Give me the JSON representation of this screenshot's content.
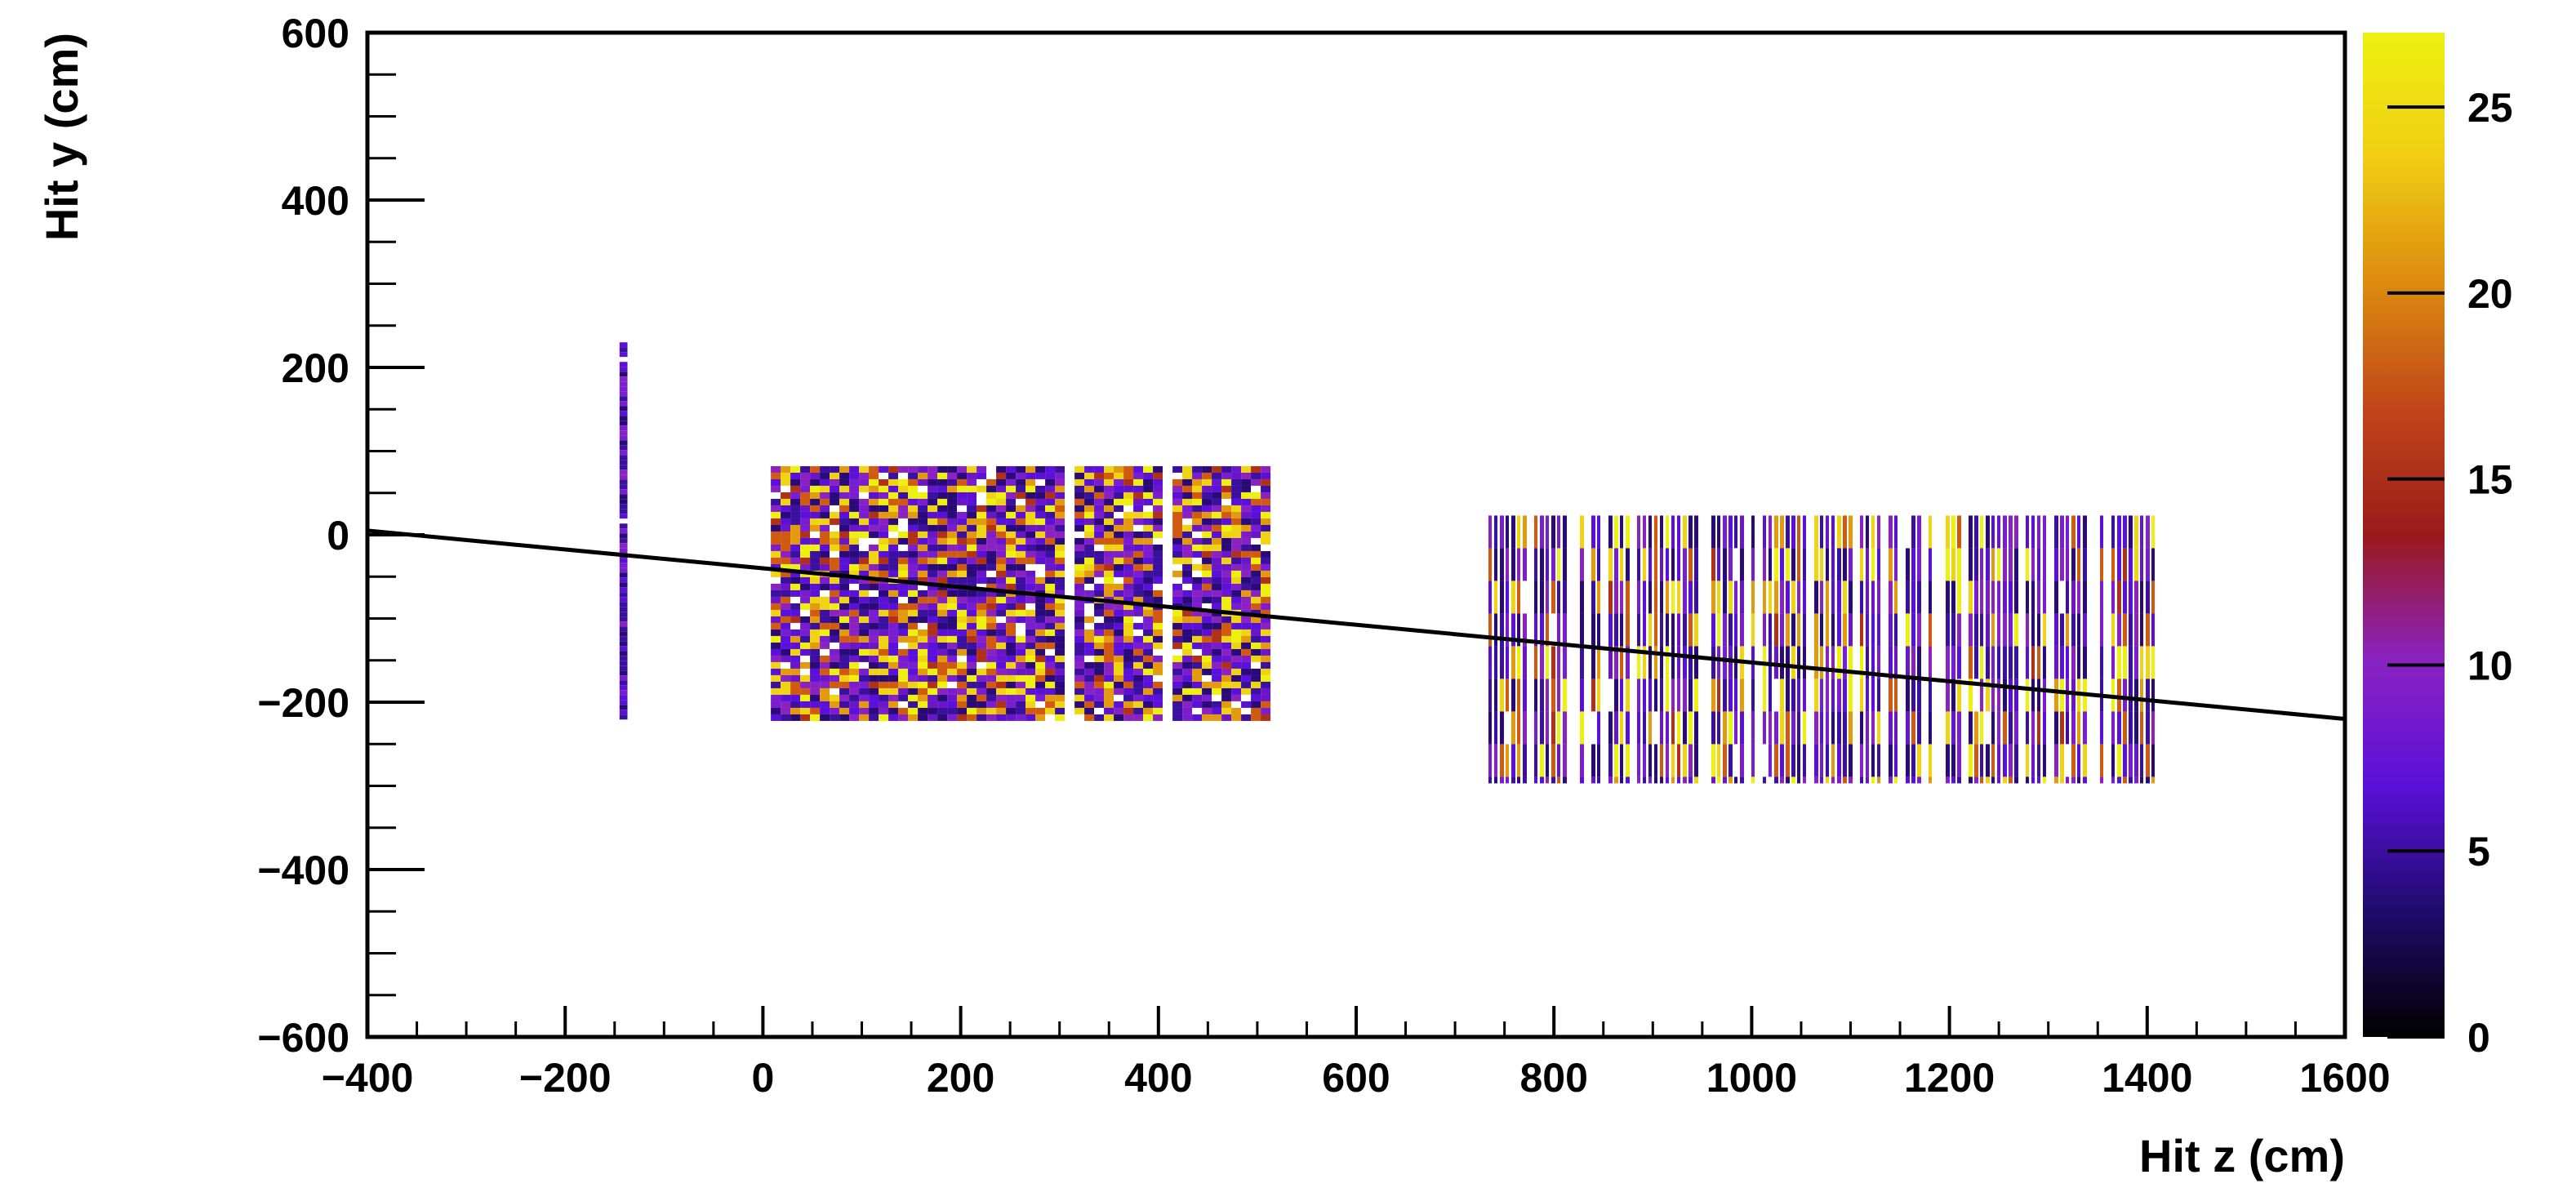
{
  "chart_data": {
    "type": "heatmap",
    "title": "",
    "xlabel": "Hit z (cm)",
    "ylabel": "Hit y (cm)",
    "xlim": [
      -400,
      1600
    ],
    "ylim": [
      -600,
      600
    ],
    "x_ticks": [
      -400,
      -200,
      0,
      200,
      400,
      600,
      800,
      1000,
      1200,
      1400,
      1600
    ],
    "y_ticks": [
      -600,
      -400,
      -200,
      0,
      200,
      400,
      600
    ],
    "x_tick_labels": [
      "−400",
      "−200",
      "0",
      "200",
      "400",
      "600",
      "800",
      "1000",
      "1200",
      "1400",
      "1600"
    ],
    "y_tick_labels": [
      "−600",
      "−400",
      "−200",
      "0",
      "200",
      "400",
      "600"
    ],
    "colorbar": {
      "range": [
        0,
        27
      ],
      "ticks": [
        0,
        5,
        10,
        15,
        20,
        25
      ],
      "tick_labels": [
        "0",
        "5",
        "10",
        "15",
        "20",
        "25"
      ],
      "colormap": [
        "#000000",
        "#1f0b6b",
        "#5a10d8",
        "#8a22c2",
        "#9a1a1a",
        "#c0461a",
        "#dc8a10",
        "#f0ce14",
        "#eef00f"
      ]
    },
    "hit_regions": [
      {
        "z_range": [
          -145,
          -137
        ],
        "y_range": [
          -220,
          230
        ],
        "style": "thin-strip"
      },
      {
        "z_range": [
          8,
          505
        ],
        "y_range": [
          -220,
          82
        ],
        "style": "dense",
        "gaps_z": [
          308,
          408
        ]
      },
      {
        "z_range": [
          728,
          1418
        ],
        "y_range": [
          -297,
          23
        ],
        "style": "striped"
      }
    ],
    "line": {
      "z": [
        -400,
        1600
      ],
      "y": [
        5,
        -220
      ],
      "color": "#000000"
    },
    "grid": false,
    "legend": "none"
  }
}
